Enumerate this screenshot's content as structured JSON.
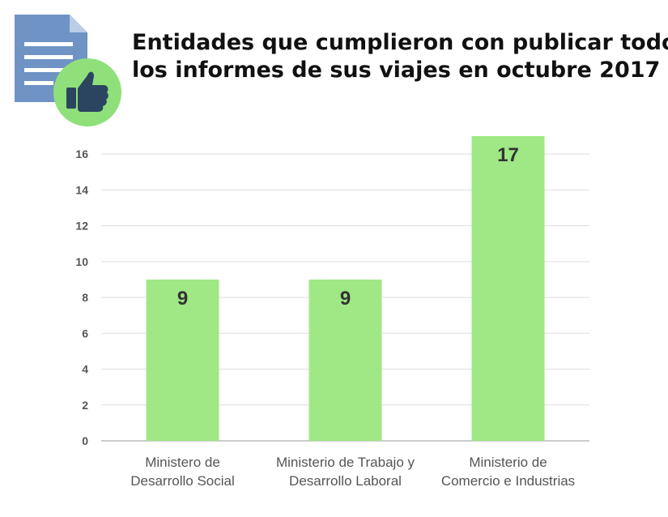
{
  "title": {
    "line1": "Entidades que cumplieron con publicar todos",
    "line2": "los informes de sus viajes en octubre 2017"
  },
  "icons": {
    "logo": "document-thumbs-up-icon"
  },
  "colors": {
    "bar": "#9fe885",
    "grid": "#dddddd",
    "document": "#6f93c4",
    "document_fold": "#b9cde6",
    "badge": "#8fe07a",
    "thumb": "#2b4560"
  },
  "chart_data": {
    "type": "bar",
    "categories": [
      [
        "Ministero de",
        "Desarrollo Social"
      ],
      [
        "Ministerio de Trabajo y",
        "Desarrollo Laboral"
      ],
      [
        "Ministerio de",
        "Comercio e Industrias"
      ]
    ],
    "values": [
      9,
      9,
      17
    ],
    "data_labels": [
      "9",
      "9",
      "17"
    ],
    "ylim": [
      0,
      17
    ],
    "yticks": [
      0,
      2,
      4,
      6,
      8,
      10,
      12,
      14,
      16
    ],
    "grid": true,
    "legend": "none"
  }
}
